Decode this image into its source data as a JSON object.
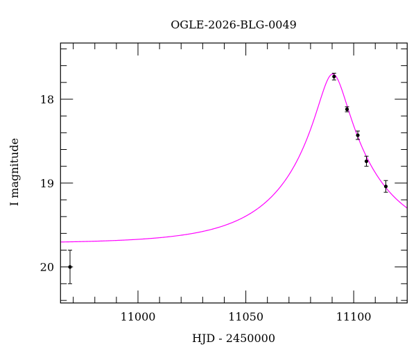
{
  "chart_data": {
    "type": "scatter",
    "title": "OGLE-2026-BLG-0049",
    "xlabel": "HJD - 2450000",
    "ylabel": "I magnitude",
    "xlim": [
      10964.1,
      11124.8
    ],
    "ylim": [
      20.43,
      17.33
    ],
    "y_inverted": true,
    "grid": false,
    "x_ticks": [
      11000,
      11050,
      11100
    ],
    "x_tick_labels": [
      "11000",
      "11050",
      "11100"
    ],
    "x_minor_step": 10,
    "y_ticks": [
      18,
      19,
      20
    ],
    "y_tick_labels": [
      "18",
      "19",
      "20"
    ],
    "y_minor_step": 0.2,
    "points": [
      {
        "x": 10968.5,
        "y": 20.0,
        "err": 0.2
      },
      {
        "x": 11090.9,
        "y": 17.73,
        "err": 0.04
      },
      {
        "x": 11096.9,
        "y": 18.12,
        "err": 0.03
      },
      {
        "x": 11101.9,
        "y": 18.43,
        "err": 0.05
      },
      {
        "x": 11105.9,
        "y": 18.74,
        "err": 0.06
      },
      {
        "x": 11114.9,
        "y": 19.04,
        "err": 0.07
      }
    ],
    "model_curve": {
      "kind": "point-lens fit",
      "t0": 11090.3,
      "u0": 0.157,
      "tE": 41.3,
      "baseline_mag": 19.72
    },
    "colors": {
      "points": "#000000",
      "model": "#ff00ff",
      "axes": "#000000"
    }
  }
}
